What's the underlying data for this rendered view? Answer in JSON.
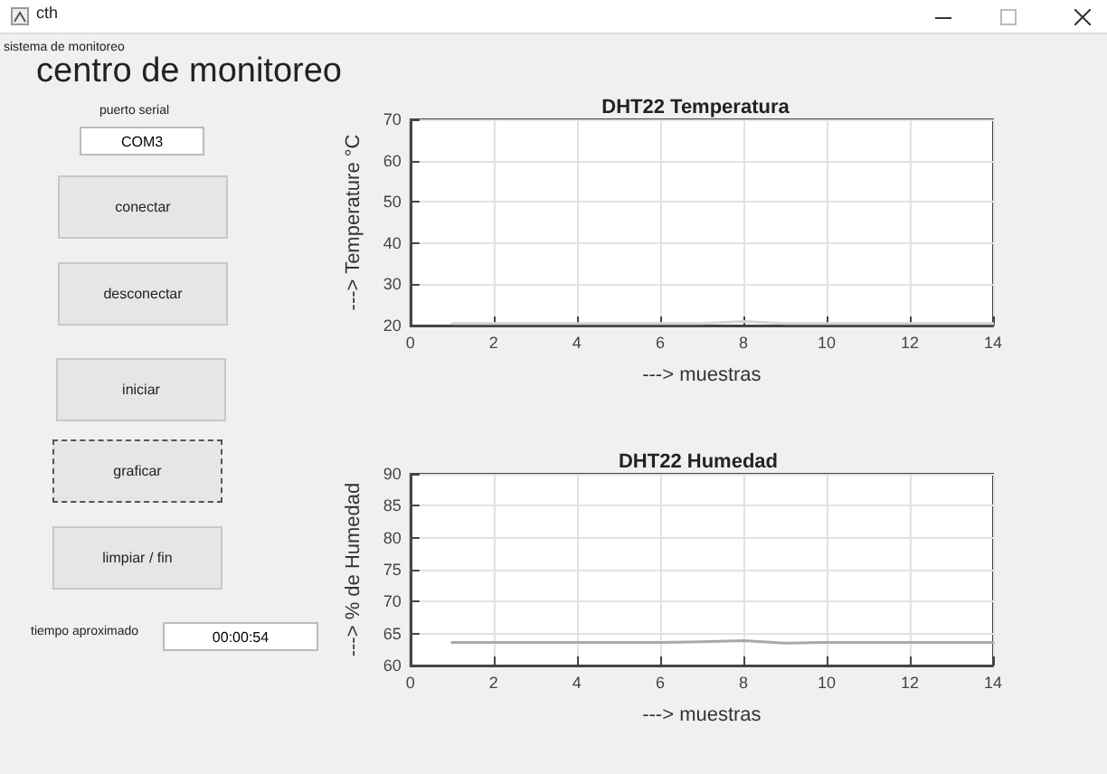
{
  "chart_data": [
    {
      "type": "other",
      "title": "centro de monitoreo",
      "annotations": [
        "cth",
        "sistema de monitoreo",
        "puerto serial",
        "COM3",
        "conectar",
        "desconectar",
        "iniciar",
        "graficar",
        "limpiar / fin",
        "tiempo aproximado",
        "00:00:54"
      ]
    },
    {
      "type": "line",
      "title": "DHT22 Temperatura",
      "xlabel": "---> muestras",
      "ylabel": "---> Temperature °C",
      "x": [
        1,
        2,
        3,
        4,
        5,
        6,
        7,
        8,
        9,
        10,
        11,
        12,
        13,
        14
      ],
      "series": [
        {
          "color": "#d4d4d4",
          "values": [
            20.5,
            20.5,
            20.5,
            20.5,
            20.5,
            20.5,
            20.5,
            21,
            20.5,
            20.5,
            20.5,
            20.5,
            20.5,
            20.5
          ]
        }
      ],
      "xlim": [
        0,
        14
      ],
      "xticks": [
        0,
        2,
        4,
        6,
        8,
        10,
        12,
        14
      ],
      "ylim": [
        20,
        70
      ],
      "yticks": [
        20,
        30,
        40,
        50,
        60,
        70
      ],
      "grid": true,
      "marker": "none",
      "line_style": "solid"
    },
    {
      "type": "line",
      "title": "DHT22 Humedad",
      "xlabel": "---> muestras",
      "ylabel": "---> % de Humedad",
      "x": [
        1,
        2,
        3,
        4,
        5,
        6,
        7,
        8,
        9,
        10,
        11,
        12,
        13,
        14
      ],
      "series": [
        {
          "color": "#a8a8a8",
          "values": [
            63.6,
            63.6,
            63.6,
            63.6,
            63.6,
            63.6,
            63.7,
            63.9,
            63.5,
            63.6,
            63.6,
            63.6,
            63.6,
            63.6
          ]
        }
      ],
      "xlim": [
        0,
        14
      ],
      "xticks": [
        0,
        2,
        4,
        6,
        8,
        10,
        12,
        14
      ],
      "ylim": [
        60,
        90
      ],
      "yticks": [
        60,
        65,
        70,
        75,
        80,
        85,
        90
      ],
      "grid": true,
      "marker": "none",
      "line_style": "solid"
    }
  ]
}
